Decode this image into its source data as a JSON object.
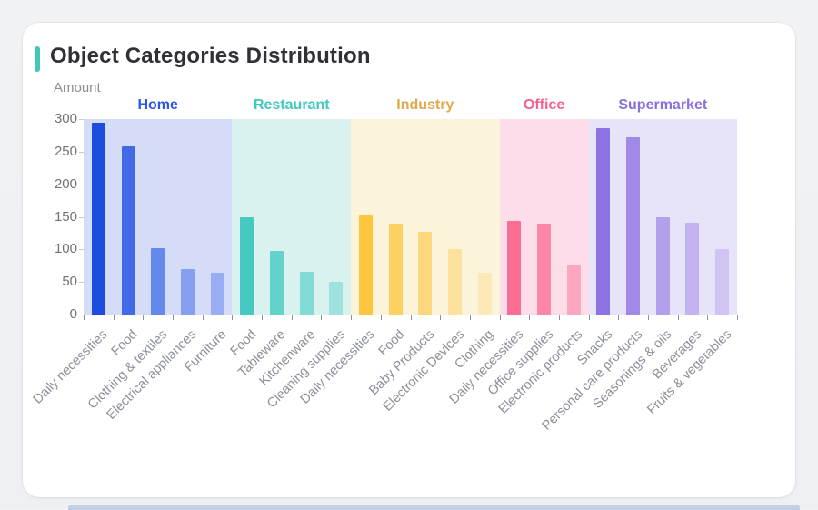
{
  "header": {
    "title": "Object Categories Distribution",
    "accent_color": "#3FC8B8"
  },
  "chart_data": {
    "type": "bar",
    "title": "Object Categories Distribution",
    "xlabel": "",
    "ylabel": "Amount",
    "ylim": [
      0,
      300
    ],
    "yticks": [
      0,
      50,
      100,
      150,
      200,
      250,
      300
    ],
    "grid": false,
    "legend_position": "none",
    "axis_color": "#8f9296",
    "x_label_rotation_deg": 45,
    "groups": [
      {
        "name": "Home",
        "label_color": "#2F54EB",
        "bg_color": "#D4DCF7",
        "categories": [
          "Daily necessities",
          "Food",
          "Clothing & textiles",
          "Electrical appliances",
          "Furniture"
        ],
        "values": [
          295,
          258,
          102,
          70,
          64
        ],
        "bar_colors": [
          "#1D4CE0",
          "#416AE8",
          "#6488EC",
          "#85A0F0",
          "#99ADF2"
        ]
      },
      {
        "name": "Restaurant",
        "label_color": "#3FC8BE",
        "bg_color": "#D9F2F0",
        "categories": [
          "Food",
          "Tableware",
          "Kitchenware",
          "Cleaning supplies"
        ],
        "values": [
          149,
          98,
          65,
          50
        ],
        "bar_colors": [
          "#45C9C0",
          "#63D2CA",
          "#82DBD4",
          "#9FE3DE"
        ]
      },
      {
        "name": "Industry",
        "label_color": "#E2A94C",
        "bg_color": "#FCF3DB",
        "categories": [
          "Daily necessities",
          "Food",
          "Baby Products",
          "Electronic Devices",
          "Clothing"
        ],
        "values": [
          152,
          140,
          127,
          100,
          64
        ],
        "bar_colors": [
          "#FEC53E",
          "#FDD060",
          "#FDD87D",
          "#FDE19C",
          "#FDE9B8"
        ]
      },
      {
        "name": "Office",
        "label_color": "#F4628F",
        "bg_color": "#FDDDE9",
        "categories": [
          "Daily necessities",
          "Office supplies",
          "Electronic products"
        ],
        "values": [
          144,
          140,
          75
        ],
        "bar_colors": [
          "#FB6D92",
          "#FB87A6",
          "#FCA7BE"
        ]
      },
      {
        "name": "Supermarket",
        "label_color": "#8A6FE0",
        "bg_color": "#E7E3F9",
        "categories": [
          "Snacks",
          "Personal care products",
          "Seasonings & oils",
          "Beverages",
          "Fruits & vegetables"
        ],
        "values": [
          286,
          272,
          150,
          141,
          101
        ],
        "bar_colors": [
          "#8D72E3",
          "#A189E8",
          "#B3A0ED",
          "#C2B3F0",
          "#CFC4F3"
        ]
      }
    ]
  }
}
